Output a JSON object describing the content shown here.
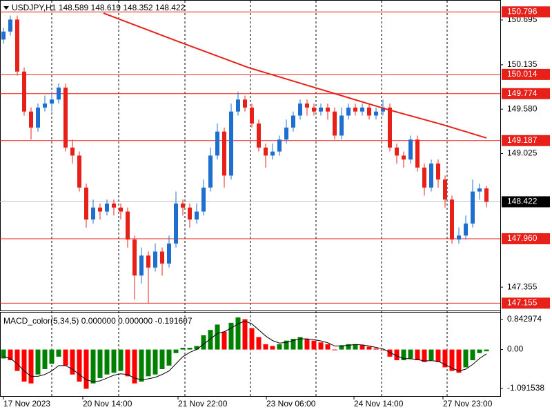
{
  "chart_data": [
    {
      "type": "candlestick",
      "title": "USDJPY,H1  148.589 148.619 148.352 148.422",
      "up_color": "#1f6fd0",
      "down_color": "#e8201a",
      "xlim": [
        -0.5,
        72.5
      ],
      "xticks": [
        {
          "value": 0,
          "label": "17 Nov 2023"
        },
        {
          "value": 11.5,
          "label": "20 Nov 14:00"
        },
        {
          "value": 25.3,
          "label": "21 Nov 22:00"
        },
        {
          "value": 38.1,
          "label": "23 Nov 06:00"
        },
        {
          "value": 50.8,
          "label": "24 Nov 14:00"
        },
        {
          "value": 63.7,
          "label": "27 Nov 23:00"
        }
      ],
      "ylim": [
        147.063,
        150.936
      ],
      "yticks": [
        150.695,
        150.135,
        {
          "value": 149.58,
          "label": "149.580"
        },
        149.025,
        147.355
      ],
      "levels": [
        150.796,
        150.014,
        149.774,
        149.187,
        {
          "value": 147.96,
          "label": "147.960"
        },
        147.155
      ],
      "level_color": "#e8201a",
      "current_price": 148.422,
      "candles": [
        [
          150.45,
          150.6,
          150.4,
          150.55
        ],
        [
          150.55,
          150.75,
          150.5,
          150.7
        ],
        [
          150.7,
          150.75,
          150.0,
          150.05
        ],
        [
          150.05,
          150.1,
          149.5,
          149.55
        ],
        [
          149.55,
          149.6,
          149.2,
          149.35
        ],
        [
          149.35,
          149.65,
          149.3,
          149.6
        ],
        [
          149.6,
          149.75,
          149.55,
          149.65
        ],
        [
          149.65,
          149.8,
          149.55,
          149.7
        ],
        [
          149.7,
          149.9,
          149.65,
          149.85
        ],
        [
          149.85,
          149.9,
          149.05,
          149.1
        ],
        [
          149.1,
          149.2,
          148.9,
          149.0
        ],
        [
          149.0,
          149.05,
          148.55,
          148.6
        ],
        [
          148.6,
          148.65,
          148.1,
          148.2
        ],
        [
          148.2,
          148.45,
          148.15,
          148.35
        ],
        [
          148.35,
          148.4,
          148.2,
          148.3
        ],
        [
          148.3,
          148.45,
          148.25,
          148.4
        ],
        [
          148.4,
          148.45,
          148.25,
          148.35
        ],
        [
          148.35,
          148.4,
          148.2,
          148.3
        ],
        [
          148.3,
          148.35,
          147.85,
          147.95
        ],
        [
          147.95,
          148.0,
          147.2,
          147.5
        ],
        [
          147.5,
          147.85,
          147.4,
          147.75
        ],
        [
          147.75,
          147.8,
          147.15,
          147.6
        ],
        [
          147.6,
          147.9,
          147.55,
          147.8
        ],
        [
          147.8,
          147.85,
          147.5,
          147.65
        ],
        [
          147.65,
          148.0,
          147.6,
          147.9
        ],
        [
          147.9,
          148.55,
          147.85,
          148.4
        ],
        [
          148.4,
          148.45,
          148.25,
          148.35
        ],
        [
          148.35,
          148.4,
          148.1,
          148.2
        ],
        [
          148.2,
          148.4,
          148.15,
          148.3
        ],
        [
          148.3,
          148.7,
          148.25,
          148.6
        ],
        [
          148.6,
          149.1,
          148.55,
          149.0
        ],
        [
          149.0,
          149.4,
          148.95,
          149.3
        ],
        [
          149.3,
          149.35,
          148.6,
          148.75
        ],
        [
          148.75,
          149.65,
          148.7,
          149.55
        ],
        [
          149.55,
          149.8,
          149.5,
          149.7
        ],
        [
          149.7,
          149.75,
          149.55,
          149.6
        ],
        [
          149.6,
          149.65,
          149.35,
          149.4
        ],
        [
          149.4,
          149.45,
          149.05,
          149.1
        ],
        [
          149.1,
          149.15,
          148.85,
          149.0
        ],
        [
          149.0,
          149.15,
          148.95,
          149.05
        ],
        [
          149.05,
          149.25,
          149.0,
          149.2
        ],
        [
          149.2,
          149.45,
          149.15,
          149.35
        ],
        [
          149.35,
          149.55,
          149.3,
          149.5
        ],
        [
          149.5,
          149.7,
          149.45,
          149.65
        ],
        [
          149.65,
          149.7,
          149.5,
          149.6
        ],
        [
          149.6,
          149.65,
          149.5,
          149.55
        ],
        [
          149.55,
          149.65,
          149.5,
          149.6
        ],
        [
          149.6,
          149.65,
          149.45,
          149.55
        ],
        [
          149.55,
          149.6,
          149.2,
          149.25
        ],
        [
          149.25,
          149.6,
          149.2,
          149.5
        ],
        [
          149.5,
          149.65,
          149.45,
          149.6
        ],
        [
          149.6,
          149.65,
          149.5,
          149.55
        ],
        [
          149.55,
          149.65,
          149.5,
          149.6
        ],
        [
          149.6,
          149.65,
          149.45,
          149.5
        ],
        [
          149.5,
          149.6,
          149.45,
          149.55
        ],
        [
          149.55,
          149.7,
          149.5,
          149.6
        ],
        [
          149.6,
          149.65,
          149.05,
          149.1
        ],
        [
          149.1,
          149.15,
          148.9,
          149.0
        ],
        [
          149.0,
          149.05,
          148.85,
          148.95
        ],
        [
          148.95,
          149.25,
          148.9,
          149.2
        ],
        [
          149.2,
          149.25,
          148.8,
          148.85
        ],
        [
          148.85,
          148.9,
          148.5,
          148.6
        ],
        [
          148.6,
          148.95,
          148.55,
          148.9
        ],
        [
          148.9,
          148.95,
          148.6,
          148.7
        ],
        [
          148.7,
          148.75,
          148.35,
          148.45
        ],
        [
          148.45,
          148.5,
          147.9,
          147.95
        ],
        [
          147.95,
          148.1,
          147.9,
          148.0
        ],
        [
          148.0,
          148.25,
          147.95,
          148.15
        ],
        [
          148.15,
          148.7,
          148.1,
          148.55
        ],
        [
          148.55,
          148.65,
          148.45,
          148.589
        ],
        [
          148.589,
          148.619,
          148.352,
          148.422
        ]
      ],
      "ma": {
        "color": "#e8201a",
        "x": [
          14.5,
          25.5,
          35.5,
          45.5,
          55.5,
          63.5,
          70
        ],
        "values": [
          150.78,
          150.42,
          150.1,
          149.84,
          149.58,
          149.39,
          149.22
        ]
      }
    },
    {
      "type": "macd",
      "title": "MACD_color(5,34,5) 0.000000 0.000000 -0.191607",
      "up_color": "#008000",
      "down_color": "#ff0000",
      "signal_color": "#000000",
      "xlim": [
        -0.5,
        72.5
      ],
      "ylim": [
        -1.324,
        1.056
      ],
      "yticks": [
        0.842974,
        {
          "value": 0,
          "label": "0.00"
        },
        -1.091538
      ],
      "values": [
        -0.25,
        -0.3,
        -0.6,
        -0.9,
        -0.95,
        -0.7,
        -0.55,
        -0.4,
        -0.2,
        -0.45,
        -0.7,
        -0.9,
        -1.1,
        -0.95,
        -0.8,
        -0.7,
        -0.65,
        -0.6,
        -0.75,
        -0.95,
        -0.9,
        -0.75,
        -0.7,
        -0.55,
        -0.45,
        -0.1,
        0.05,
        0.05,
        0.1,
        0.4,
        0.55,
        0.7,
        0.5,
        0.75,
        0.9,
        0.85,
        0.6,
        0.35,
        0.15,
        0.1,
        0.15,
        0.25,
        0.3,
        0.35,
        0.3,
        0.25,
        0.2,
        0.15,
        0.0,
        0.12,
        0.15,
        0.15,
        0.12,
        0.08,
        0.03,
        -0.02,
        -0.2,
        -0.3,
        -0.3,
        -0.25,
        -0.3,
        -0.35,
        -0.3,
        -0.35,
        -0.5,
        -0.6,
        -0.65,
        -0.5,
        -0.3,
        -0.1,
        -0.05
      ],
      "signal": [
        -0.2,
        -0.25,
        -0.4,
        -0.6,
        -0.75,
        -0.75,
        -0.7,
        -0.6,
        -0.45,
        -0.45,
        -0.55,
        -0.7,
        -0.85,
        -0.9,
        -0.88,
        -0.8,
        -0.72,
        -0.68,
        -0.7,
        -0.8,
        -0.85,
        -0.82,
        -0.78,
        -0.7,
        -0.6,
        -0.4,
        -0.2,
        -0.08,
        0.0,
        0.15,
        0.3,
        0.45,
        0.5,
        0.6,
        0.72,
        0.8,
        0.72,
        0.55,
        0.38,
        0.25,
        0.18,
        0.2,
        0.25,
        0.3,
        0.3,
        0.28,
        0.24,
        0.19,
        0.1,
        0.1,
        0.12,
        0.14,
        0.13,
        0.1,
        0.06,
        0.02,
        -0.08,
        -0.18,
        -0.25,
        -0.26,
        -0.28,
        -0.32,
        -0.31,
        -0.33,
        -0.42,
        -0.52,
        -0.6,
        -0.55,
        -0.42,
        -0.25,
        -0.12
      ]
    }
  ]
}
